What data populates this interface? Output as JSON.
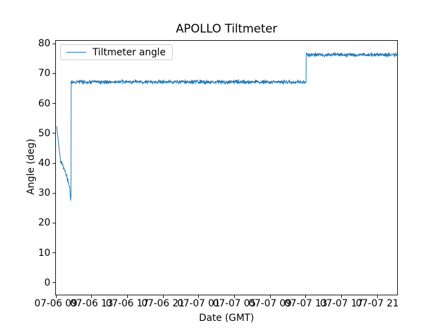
{
  "chart_data": {
    "type": "line",
    "title": "APOLLO Tiltmeter",
    "xlabel": "Date (GMT)",
    "ylabel": "Angle (deg)",
    "grid": false,
    "legend": {
      "position": "upper left",
      "entries": [
        "Tiltmeter angle"
      ]
    },
    "line_color": "#1f77b4",
    "axis_color": "#1a1a1a",
    "legend_border_color": "#cccccc",
    "ylim": [
      -4.2,
      81.2
    ],
    "yticks": [
      0,
      10,
      20,
      30,
      40,
      50,
      60,
      70,
      80
    ],
    "xlim_hours": [
      8.92,
      47.3
    ],
    "xtick_hours": [
      9,
      13,
      17,
      21,
      25,
      29,
      33,
      37,
      41,
      45
    ],
    "xtick_labels": [
      "07-06 09",
      "07-06 13",
      "07-06 17",
      "07-06 21",
      "07-07 01",
      "07-07 05",
      "07-07 09",
      "07-07 13",
      "07-07 17",
      "07-07 21"
    ],
    "series": [
      {
        "name": "Tiltmeter angle",
        "unit": "deg",
        "segments": [
          {
            "start_h": 9.08,
            "end_h": 9.32,
            "start_v": 52.3,
            "end_v": 46.0,
            "noise": 0.25
          },
          {
            "start_h": 9.32,
            "end_h": 9.52,
            "start_v": 46.0,
            "end_v": 40.8,
            "noise": 0.3
          },
          {
            "start_h": 9.52,
            "end_h": 9.7,
            "start_v": 40.8,
            "end_v": 39.8,
            "noise": 0.5
          },
          {
            "start_h": 9.7,
            "end_h": 10.05,
            "start_v": 39.8,
            "end_v": 37.0,
            "noise": 0.45
          },
          {
            "start_h": 10.05,
            "end_h": 10.42,
            "start_v": 37.0,
            "end_v": 33.3,
            "noise": 0.65
          },
          {
            "start_h": 10.42,
            "end_h": 10.55,
            "start_v": 33.3,
            "end_v": 31.5,
            "noise": 0.4
          },
          {
            "start_h": 10.55,
            "end_h": 10.64,
            "start_v": 31.5,
            "end_v": 27.5,
            "noise": 0.25
          },
          {
            "start_h": 10.64,
            "end_h": 10.69,
            "start_v": 27.5,
            "end_v": 29.0,
            "noise": 0.2
          },
          {
            "start_h": 10.69,
            "end_h": 10.7,
            "start_v": 29.0,
            "end_v": 67.2,
            "noise": 0
          },
          {
            "start_h": 10.7,
            "end_h": 37.02,
            "start_v": 67.2,
            "end_v": 67.2,
            "noise": 0.5
          },
          {
            "start_h": 37.02,
            "end_h": 37.03,
            "start_v": 67.2,
            "end_v": 76.3,
            "noise": 0
          },
          {
            "start_h": 37.03,
            "end_h": 47.22,
            "start_v": 76.3,
            "end_v": 76.3,
            "noise": 0.5
          }
        ]
      }
    ]
  }
}
